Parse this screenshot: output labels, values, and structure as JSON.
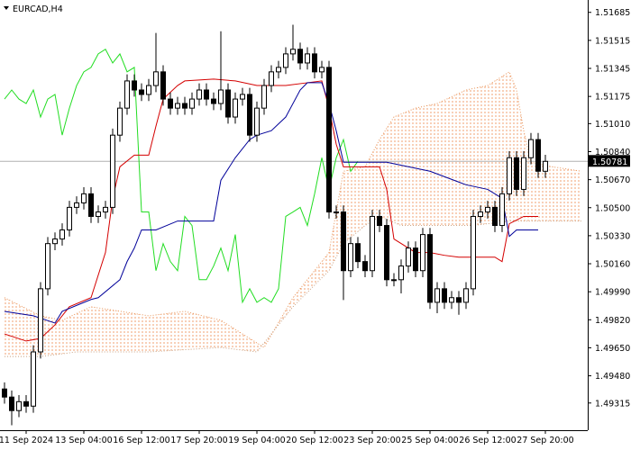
{
  "chart_data": {
    "type": "candlestick",
    "title": "EURCAD,H4",
    "categories": [
      null,
      null,
      null,
      "11 Sep 2024",
      null,
      null,
      null,
      null,
      null,
      null,
      null,
      "13 Sep 04:00",
      null,
      null,
      null,
      null,
      null,
      null,
      null,
      "16 Sep 12:00",
      null,
      null,
      null,
      null,
      null,
      null,
      null,
      "17 Sep 20:00",
      null,
      null,
      null,
      null,
      null,
      null,
      null,
      "19 Sep 04:00",
      null,
      null,
      null,
      null,
      null,
      null,
      null,
      "20 Sep 12:00",
      null,
      null,
      null,
      null,
      null,
      null,
      null,
      "23 Sep 20:00",
      null,
      null,
      null,
      null,
      null,
      null,
      null,
      "25 Sep 04:00",
      null,
      null,
      null,
      null,
      null,
      null,
      null,
      "26 Sep 12:00",
      null,
      null,
      null,
      null,
      null,
      null,
      null,
      "27 Sep 20:00"
    ],
    "open": [
      1.494,
      1.49351,
      1.49269,
      1.49323,
      1.49296,
      1.49625,
      1.50008,
      1.50282,
      1.5031,
      1.50365,
      1.50502,
      1.50529,
      1.50584,
      1.50447,
      1.50474,
      1.50502,
      1.5094,
      1.51104,
      1.51269,
      1.51214,
      1.51187,
      1.51241,
      1.51324,
      1.51159,
      1.51104,
      1.51132,
      1.51104,
      1.51159,
      1.51214,
      1.51159,
      1.51132,
      1.51214,
      1.5105,
      1.51159,
      1.51187,
      1.5094,
      1.51104,
      1.51241,
      1.51324,
      1.51351,
      1.51433,
      1.51461,
      1.51378,
      1.51433,
      1.51324,
      1.51351,
      1.50474,
      1.50474,
      1.50118,
      1.50282,
      1.50173,
      1.50118,
      1.50447,
      1.50392,
      1.50063,
      1.50063,
      1.50146,
      1.50255,
      1.50118,
      1.50337,
      1.49926,
      1.50008,
      1.49926,
      1.49954,
      1.49926,
      1.50008,
      1.50447,
      1.50474,
      1.50502,
      1.50392,
      1.50584,
      1.50803,
      1.50611,
      1.50803,
      1.50913,
      1.50721
    ],
    "high": [
      1.4944,
      1.49391,
      1.49363,
      1.49363,
      1.49665,
      1.50048,
      1.50322,
      1.5035,
      1.50405,
      1.50542,
      1.50569,
      1.50624,
      1.50624,
      1.50514,
      1.50542,
      1.5098,
      1.51144,
      1.51309,
      1.51309,
      1.51254,
      1.51281,
      1.5156,
      1.51364,
      1.51199,
      1.51172,
      1.51172,
      1.51199,
      1.51254,
      1.51254,
      1.51199,
      1.5157,
      1.51254,
      1.51199,
      1.51227,
      1.51227,
      1.51144,
      1.51281,
      1.51364,
      1.51391,
      1.51473,
      1.5161,
      1.51501,
      1.51473,
      1.51473,
      1.51391,
      1.51391,
      1.50514,
      1.50514,
      1.50322,
      1.50322,
      1.50213,
      1.50487,
      1.50487,
      1.50432,
      1.50103,
      1.50186,
      1.50295,
      1.50295,
      1.50377,
      1.50377,
      1.50048,
      1.50048,
      1.49994,
      1.49994,
      1.50048,
      1.50487,
      1.50514,
      1.50542,
      1.50542,
      1.50624,
      1.50843,
      1.50843,
      1.50843,
      1.50953,
      1.50953,
      1.50821
    ],
    "low": [
      1.49311,
      1.4918,
      1.49229,
      1.49256,
      1.49256,
      1.49585,
      1.49968,
      1.50242,
      1.5027,
      1.50325,
      1.50462,
      1.50489,
      1.50407,
      1.50407,
      1.50434,
      1.50462,
      1.509,
      1.51064,
      1.51174,
      1.51147,
      1.51147,
      1.51201,
      1.51119,
      1.51064,
      1.51064,
      1.51064,
      1.51064,
      1.51119,
      1.51119,
      1.51092,
      1.51092,
      1.5101,
      1.5101,
      1.51119,
      1.509,
      1.509,
      1.51064,
      1.51201,
      1.51284,
      1.51311,
      1.51393,
      1.51338,
      1.51338,
      1.51284,
      1.51284,
      1.50434,
      1.50434,
      1.4994,
      1.50078,
      1.50133,
      1.50078,
      1.50078,
      1.50352,
      1.50023,
      1.50023,
      1.4998,
      1.50106,
      1.50078,
      1.50078,
      1.49886,
      1.4986,
      1.49886,
      1.49886,
      1.4985,
      1.49886,
      1.49968,
      1.50407,
      1.50434,
      1.50352,
      1.50352,
      1.50544,
      1.50571,
      1.50571,
      1.50763,
      1.50681,
      1.50681
    ],
    "close": [
      1.49351,
      1.49269,
      1.49323,
      1.49296,
      1.49625,
      1.50008,
      1.50282,
      1.5031,
      1.50365,
      1.50502,
      1.50529,
      1.50584,
      1.50447,
      1.50474,
      1.50502,
      1.5094,
      1.51104,
      1.51269,
      1.51214,
      1.51187,
      1.51241,
      1.51324,
      1.51159,
      1.51104,
      1.51132,
      1.51104,
      1.51159,
      1.51214,
      1.51159,
      1.51132,
      1.51214,
      1.5105,
      1.51159,
      1.51187,
      1.5094,
      1.51104,
      1.51241,
      1.51324,
      1.51351,
      1.51433,
      1.51461,
      1.51378,
      1.51433,
      1.51324,
      1.51351,
      1.50474,
      1.50474,
      1.50118,
      1.50282,
      1.50173,
      1.50118,
      1.50447,
      1.50392,
      1.50063,
      1.50063,
      1.50146,
      1.50255,
      1.50118,
      1.50337,
      1.49926,
      1.50008,
      1.49926,
      1.49954,
      1.49926,
      1.50008,
      1.50447,
      1.50474,
      1.50502,
      1.50392,
      1.50584,
      1.50803,
      1.50611,
      1.50803,
      1.50913,
      1.50721,
      1.50781
    ],
    "bull_color": "#ffffff",
    "bear_color": "#000000",
    "ylim": [
      1.4915,
      1.5176
    ],
    "yticks": [
      1.51685,
      1.51515,
      1.51345,
      1.51175,
      {
        "value": 1.5101,
        "label": "1.51010"
      },
      {
        "value": 1.5084,
        "label": "1.50840"
      },
      {
        "value": 1.5067,
        "label": "1.50670"
      },
      {
        "value": 1.505,
        "label": "1.50500"
      },
      {
        "value": 1.5033,
        "label": "1.50330"
      },
      {
        "value": 1.5016,
        "label": "1.50160"
      },
      {
        "value": 1.4999,
        "label": "1.49990"
      },
      {
        "value": 1.4982,
        "label": "1.49820"
      },
      {
        "value": 1.4965,
        "label": "1.49650"
      },
      {
        "value": 1.4948,
        "label": "1.49480"
      },
      1.49315
    ],
    "current_price": 1.50781,
    "tenkan": {
      "color": "#d40000",
      "x": [
        0,
        3,
        5,
        7,
        9,
        12,
        14,
        15,
        16,
        18,
        20,
        21,
        22,
        24,
        25,
        29,
        32,
        35,
        39,
        42,
        44,
        45,
        46,
        47,
        52,
        53,
        54,
        57,
        59,
        61,
        63,
        68,
        69,
        70,
        72,
        74
      ],
      "values": [
        1.49734,
        1.49691,
        1.49707,
        1.49789,
        1.49899,
        1.49954,
        1.50228,
        1.50556,
        1.50748,
        1.50819,
        1.50819,
        1.50995,
        1.51159,
        1.51241,
        1.51269,
        1.5128,
        1.51269,
        1.51241,
        1.51241,
        1.51258,
        1.51269,
        1.51104,
        1.50885,
        1.50748,
        1.50748,
        1.50611,
        1.5031,
        1.50228,
        1.50228,
        1.50211,
        1.502,
        1.502,
        1.50173,
        1.50403,
        1.50447,
        1.50447
      ]
    },
    "kijun": {
      "color": "#000099",
      "x": [
        0,
        4,
        7,
        8,
        12,
        13,
        16,
        17,
        18,
        19,
        21,
        24,
        29,
        30,
        32,
        34,
        35,
        37,
        39,
        41,
        42,
        44,
        45,
        46,
        47,
        53,
        59,
        64,
        67,
        69,
        70,
        71,
        74
      ],
      "values": [
        1.49871,
        1.49844,
        1.498,
        1.49871,
        1.49943,
        1.49954,
        1.50063,
        1.50173,
        1.50255,
        1.50365,
        1.50365,
        1.50419,
        1.50419,
        1.50666,
        1.50803,
        1.50913,
        1.5094,
        1.50967,
        1.5105,
        1.51214,
        1.51258,
        1.51258,
        1.51132,
        1.50967,
        1.50776,
        1.50776,
        1.50721,
        1.50639,
        1.50611,
        1.50557,
        1.50326,
        1.50365,
        1.50365
      ]
    },
    "chikou": {
      "color": "#22dd22",
      "values": [
        1.51159,
        1.51214,
        1.51159,
        1.51132,
        1.51214,
        1.5105,
        1.51159,
        1.51187,
        1.5094,
        1.51104,
        1.51241,
        1.51324,
        1.51351,
        1.51433,
        1.51461,
        1.51378,
        1.51433,
        1.51324,
        1.51351,
        1.50474,
        1.50474,
        1.50118,
        1.50282,
        1.50173,
        1.50118,
        1.50447,
        1.50392,
        1.50063,
        1.50063,
        1.50146,
        1.50255,
        1.50118,
        1.50337,
        1.49926,
        1.50008,
        1.49926,
        1.49954,
        1.49926,
        1.50008,
        1.50447,
        1.50474,
        1.50502,
        1.50392,
        1.50584,
        1.50803,
        1.50611,
        1.50803,
        1.50913,
        1.50721,
        1.50781
      ]
    },
    "senkou_a": {
      "color": "#e8955a",
      "x": [
        0,
        5,
        8,
        12,
        20,
        25,
        30,
        33,
        36,
        40,
        45,
        47,
        50,
        52,
        54,
        57,
        60,
        64,
        67,
        69,
        70,
        71,
        72,
        73,
        76,
        80
      ],
      "values": [
        1.49954,
        1.49844,
        1.49817,
        1.49899,
        1.49844,
        1.49871,
        1.49817,
        1.49734,
        1.49652,
        1.49954,
        1.50228,
        1.50721,
        1.50748,
        1.50913,
        1.5105,
        1.51104,
        1.51132,
        1.51214,
        1.51241,
        1.51296,
        1.51324,
        1.51214,
        1.50967,
        1.50776,
        1.50748,
        1.50721
      ]
    },
    "senkou_b": {
      "color": "#c8a080",
      "x": [
        0,
        5,
        10,
        20,
        30,
        35,
        40,
        45,
        47,
        50,
        52,
        55,
        65,
        70,
        80
      ],
      "values": [
        1.49597,
        1.49597,
        1.49625,
        1.49625,
        1.49652,
        1.49625,
        1.49899,
        1.50118,
        1.50282,
        1.50392,
        1.50447,
        1.50392,
        1.50392,
        1.50419,
        1.50419
      ]
    }
  }
}
